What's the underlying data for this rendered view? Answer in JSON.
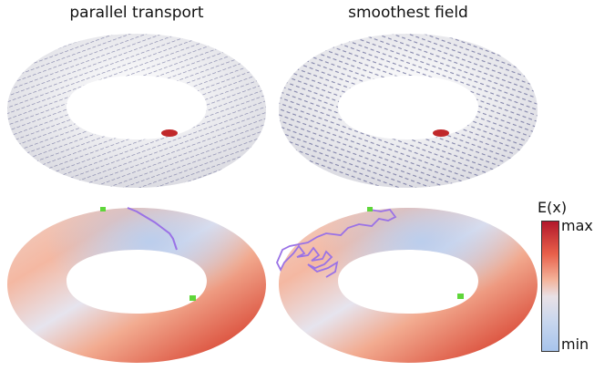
{
  "titles": {
    "left": "parallel transport",
    "right": "smoothest field"
  },
  "colorbar": {
    "title": "E(x)",
    "max_label": "max",
    "min_label": "min",
    "colors": [
      "#b2182b",
      "#e8604a",
      "#f4b39a",
      "#e9e1e6",
      "#c7d6ee",
      "#a8c4ec"
    ]
  },
  "colors": {
    "torus_base": "#f2f2f4",
    "hatch": "#6a6c9a",
    "marker_red": "#c0282a",
    "marker_green": "#5fd63a",
    "path_purple": "#9a72e6"
  }
}
